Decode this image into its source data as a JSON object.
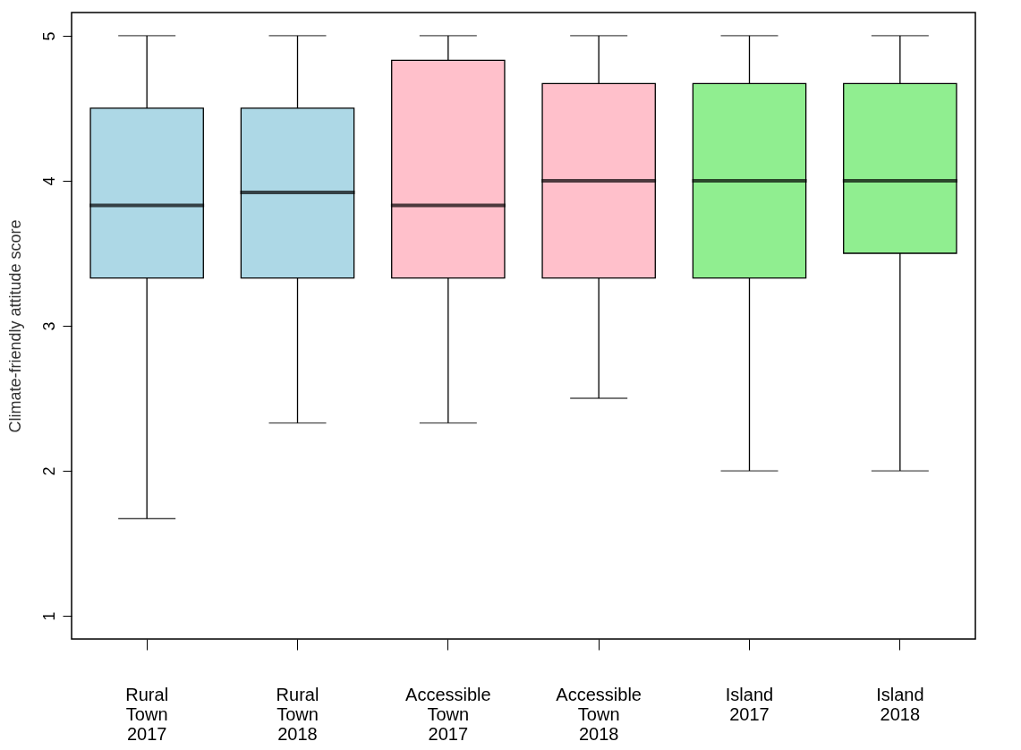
{
  "chart_data": {
    "type": "box",
    "ylabel": "Climate-friendly attitude score",
    "categories": [
      "Rural Town 2017",
      "Rural Town 2018",
      "Accessible Town 2017",
      "Accessible Town 2018",
      "Island 2017",
      "Island 2018"
    ],
    "colors": [
      "#add8e6",
      "#add8e6",
      "#ffc0cb",
      "#ffc0cb",
      "#90ee90",
      "#90ee90"
    ],
    "boxes": [
      {
        "low": 1.67,
        "q1": 3.33,
        "median": 3.83,
        "q3": 4.5,
        "high": 5
      },
      {
        "low": 2.33,
        "q1": 3.33,
        "median": 3.92,
        "q3": 4.5,
        "high": 5
      },
      {
        "low": 2.33,
        "q1": 3.33,
        "median": 3.83,
        "q3": 4.83,
        "high": 5
      },
      {
        "low": 2.5,
        "q1": 3.33,
        "median": 4,
        "q3": 4.67,
        "high": 5
      },
      {
        "low": 2,
        "q1": 3.33,
        "median": 4,
        "q3": 4.67,
        "high": 5
      },
      {
        "low": 2,
        "q1": 3.5,
        "median": 4,
        "q3": 4.67,
        "high": 5
      }
    ],
    "ylim": [
      0.84,
      5.16
    ],
    "yticks": [
      1,
      2,
      3,
      4,
      5
    ],
    "grid": false,
    "legend": false
  }
}
